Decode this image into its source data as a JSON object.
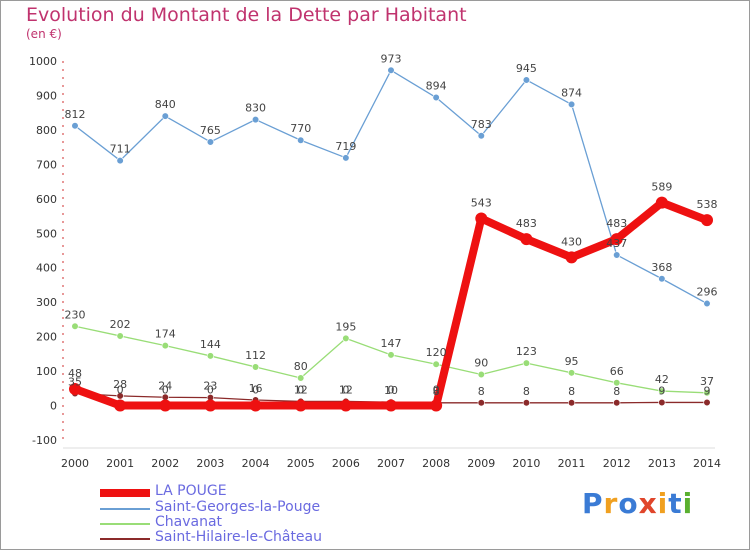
{
  "header": {
    "title": "Evolution du Montant de la Dette par Habitant",
    "subtitle": "(en €)"
  },
  "logo": {
    "text": "Proxiti",
    "colors": [
      "#3a7bd5",
      "#f0a020",
      "#3a7bd5",
      "#e0452a",
      "#f0a020",
      "#3a7bd5",
      "#5ab030"
    ]
  },
  "chart_data": {
    "type": "line",
    "title": "Evolution du Montant de la Dette par Habitant",
    "subtitle": "(en €)",
    "x": [
      "2000",
      "2001",
      "2002",
      "2003",
      "2004",
      "2005",
      "2006",
      "2007",
      "2008",
      "2009",
      "2010",
      "2011",
      "2012",
      "2013",
      "2014"
    ],
    "ylim": [
      -100,
      1000
    ],
    "yticks": [
      "-100",
      "0",
      "100",
      "200",
      "300",
      "400",
      "500",
      "600",
      "700",
      "800",
      "900",
      "1000"
    ],
    "grid": false,
    "legend_position": "bottom-left",
    "series": [
      {
        "name": "Saint-Georges-la-Pouge",
        "color": "#6a9fd4",
        "values": [
          812,
          711,
          840,
          765,
          830,
          770,
          719,
          973,
          894,
          783,
          945,
          874,
          437,
          368,
          296
        ],
        "labels": [
          "812",
          "711",
          "840",
          "765",
          "830",
          "770",
          "719",
          "973",
          "894",
          "783",
          "945",
          "874",
          "437",
          "368",
          "296"
        ]
      },
      {
        "name": "Chavanat",
        "color": "#99dd77",
        "values": [
          230,
          202,
          174,
          144,
          112,
          80,
          195,
          147,
          120,
          90,
          123,
          95,
          66,
          42,
          37
        ],
        "labels": [
          "230",
          "202",
          "174",
          "144",
          "112",
          "80",
          "195",
          "147",
          "120",
          "90",
          "123",
          "95",
          "66",
          "42",
          "37"
        ]
      },
      {
        "name": "Saint-Hilaire-le-Château",
        "color": "#8b2a2a",
        "values": [
          35,
          28,
          24,
          23,
          16,
          12,
          12,
          10,
          8,
          8,
          8,
          8,
          8,
          9,
          9
        ],
        "labels": [
          "35",
          "28",
          "24",
          "23",
          "16",
          "12",
          "12",
          "10",
          "8",
          "8",
          "8",
          "8",
          "8",
          "9",
          "9"
        ]
      },
      {
        "name": "LA POUGE",
        "color": "#ee1111",
        "values": [
          48,
          0,
          0,
          0,
          0,
          0,
          0,
          0,
          0,
          543,
          483,
          430,
          483,
          589,
          538
        ],
        "labels": [
          "48",
          "0",
          "0",
          "0",
          "0",
          "0",
          "0",
          "0",
          "0",
          "543",
          "483",
          "430",
          "483",
          "589",
          "538"
        ]
      }
    ]
  }
}
